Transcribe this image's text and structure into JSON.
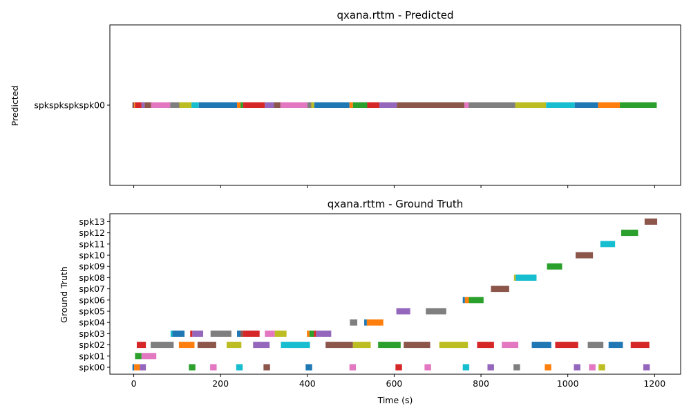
{
  "chart_data": [
    {
      "type": "timeline",
      "title": "qxana.rttm - Predicted",
      "ylabel": "Predicted",
      "xlabel": "",
      "xlim": [
        -55,
        1260
      ],
      "xticks": [
        0,
        200,
        400,
        600,
        800,
        1000,
        1200
      ],
      "xtick_labels": [
        "0",
        "200",
        "400",
        "600",
        "800",
        "1000",
        "1200"
      ],
      "tracks": [
        "spkspkspkspk00"
      ],
      "segments": [
        {
          "track": 0,
          "start": -3,
          "end": 1,
          "color": "#8c564b"
        },
        {
          "track": 0,
          "start": 1,
          "end": 3,
          "color": "#ff7f0e"
        },
        {
          "track": 0,
          "start": 3,
          "end": 18,
          "color": "#d62728"
        },
        {
          "track": 0,
          "start": 18,
          "end": 25,
          "color": "#9467bd"
        },
        {
          "track": 0,
          "start": 25,
          "end": 40,
          "color": "#8c564b"
        },
        {
          "track": 0,
          "start": 40,
          "end": 84,
          "color": "#e377c2"
        },
        {
          "track": 0,
          "start": 84,
          "end": 105,
          "color": "#7f7f7f"
        },
        {
          "track": 0,
          "start": 105,
          "end": 133,
          "color": "#bcbd22"
        },
        {
          "track": 0,
          "start": 133,
          "end": 150,
          "color": "#17becf"
        },
        {
          "track": 0,
          "start": 150,
          "end": 238,
          "color": "#1f77b4"
        },
        {
          "track": 0,
          "start": 238,
          "end": 246,
          "color": "#ff7f0e"
        },
        {
          "track": 0,
          "start": 246,
          "end": 252,
          "color": "#2ca02c"
        },
        {
          "track": 0,
          "start": 252,
          "end": 302,
          "color": "#d62728"
        },
        {
          "track": 0,
          "start": 302,
          "end": 323,
          "color": "#9467bd"
        },
        {
          "track": 0,
          "start": 323,
          "end": 338,
          "color": "#8c564b"
        },
        {
          "track": 0,
          "start": 338,
          "end": 400,
          "color": "#e377c2"
        },
        {
          "track": 0,
          "start": 400,
          "end": 409,
          "color": "#7f7f7f"
        },
        {
          "track": 0,
          "start": 409,
          "end": 416,
          "color": "#bcbd22"
        },
        {
          "track": 0,
          "start": 416,
          "end": 497,
          "color": "#1f77b4"
        },
        {
          "track": 0,
          "start": 497,
          "end": 505,
          "color": "#ff7f0e"
        },
        {
          "track": 0,
          "start": 505,
          "end": 538,
          "color": "#2ca02c"
        },
        {
          "track": 0,
          "start": 538,
          "end": 566,
          "color": "#d62728"
        },
        {
          "track": 0,
          "start": 566,
          "end": 606,
          "color": "#9467bd"
        },
        {
          "track": 0,
          "start": 606,
          "end": 762,
          "color": "#8c564b"
        },
        {
          "track": 0,
          "start": 762,
          "end": 772,
          "color": "#e377c2"
        },
        {
          "track": 0,
          "start": 772,
          "end": 879,
          "color": "#7f7f7f"
        },
        {
          "track": 0,
          "start": 879,
          "end": 950,
          "color": "#bcbd22"
        },
        {
          "track": 0,
          "start": 950,
          "end": 1016,
          "color": "#17becf"
        },
        {
          "track": 0,
          "start": 1016,
          "end": 1070,
          "color": "#1f77b4"
        },
        {
          "track": 0,
          "start": 1070,
          "end": 1120,
          "color": "#ff7f0e"
        },
        {
          "track": 0,
          "start": 1120,
          "end": 1205,
          "color": "#2ca02c"
        }
      ]
    },
    {
      "type": "timeline",
      "title": "qxana.rttm - Ground Truth",
      "ylabel": "Ground Truth",
      "xlabel": "Time (s)",
      "xlim": [
        -55,
        1260
      ],
      "xticks": [
        0,
        200,
        400,
        600,
        800,
        1000,
        1200
      ],
      "xtick_labels": [
        "0",
        "200",
        "400",
        "600",
        "800",
        "1000",
        "1200"
      ],
      "tracks": [
        "spk00",
        "spk01",
        "spk02",
        "spk03",
        "spk04",
        "spk05",
        "spk06",
        "spk07",
        "spk08",
        "spk09",
        "spk10",
        "spk11",
        "spk12",
        "spk13"
      ],
      "segments": [
        {
          "track": 0,
          "start": -3,
          "end": 1,
          "color": "#1f77b4"
        },
        {
          "track": 0,
          "start": 1,
          "end": 14,
          "color": "#ff7f0e"
        },
        {
          "track": 0,
          "start": 14,
          "end": 28,
          "color": "#9467bd"
        },
        {
          "track": 0,
          "start": 127,
          "end": 142,
          "color": "#2ca02c"
        },
        {
          "track": 0,
          "start": 176,
          "end": 191,
          "color": "#e377c2"
        },
        {
          "track": 0,
          "start": 236,
          "end": 251,
          "color": "#17becf"
        },
        {
          "track": 0,
          "start": 299,
          "end": 314,
          "color": "#8c564b"
        },
        {
          "track": 0,
          "start": 396,
          "end": 411,
          "color": "#1f77b4"
        },
        {
          "track": 0,
          "start": 497,
          "end": 512,
          "color": "#e377c2"
        },
        {
          "track": 0,
          "start": 603,
          "end": 618,
          "color": "#d62728"
        },
        {
          "track": 0,
          "start": 670,
          "end": 685,
          "color": "#e377c2"
        },
        {
          "track": 0,
          "start": 758,
          "end": 773,
          "color": "#17becf"
        },
        {
          "track": 0,
          "start": 815,
          "end": 830,
          "color": "#9467bd"
        },
        {
          "track": 0,
          "start": 875,
          "end": 890,
          "color": "#7f7f7f"
        },
        {
          "track": 0,
          "start": 947,
          "end": 962,
          "color": "#ff7f0e"
        },
        {
          "track": 0,
          "start": 1014,
          "end": 1029,
          "color": "#9467bd"
        },
        {
          "track": 0,
          "start": 1049,
          "end": 1064,
          "color": "#e377c2"
        },
        {
          "track": 0,
          "start": 1071,
          "end": 1086,
          "color": "#bcbd22"
        },
        {
          "track": 0,
          "start": 1174,
          "end": 1189,
          "color": "#9467bd"
        },
        {
          "track": 1,
          "start": 3,
          "end": 18,
          "color": "#2ca02c"
        },
        {
          "track": 1,
          "start": 18,
          "end": 52,
          "color": "#e377c2"
        },
        {
          "track": 2,
          "start": 7,
          "end": 28,
          "color": "#d62728"
        },
        {
          "track": 2,
          "start": 39,
          "end": 92,
          "color": "#7f7f7f"
        },
        {
          "track": 2,
          "start": 104,
          "end": 140,
          "color": "#ff7f0e"
        },
        {
          "track": 2,
          "start": 147,
          "end": 190,
          "color": "#8c564b"
        },
        {
          "track": 2,
          "start": 214,
          "end": 248,
          "color": "#bcbd22"
        },
        {
          "track": 2,
          "start": 275,
          "end": 313,
          "color": "#9467bd"
        },
        {
          "track": 2,
          "start": 339,
          "end": 406,
          "color": "#17becf"
        },
        {
          "track": 2,
          "start": 442,
          "end": 505,
          "color": "#8c564b"
        },
        {
          "track": 2,
          "start": 505,
          "end": 546,
          "color": "#bcbd22"
        },
        {
          "track": 2,
          "start": 563,
          "end": 615,
          "color": "#2ca02c"
        },
        {
          "track": 2,
          "start": 622,
          "end": 683,
          "color": "#8c564b"
        },
        {
          "track": 2,
          "start": 704,
          "end": 770,
          "color": "#bcbd22"
        },
        {
          "track": 2,
          "start": 791,
          "end": 830,
          "color": "#d62728"
        },
        {
          "track": 2,
          "start": 848,
          "end": 886,
          "color": "#e377c2"
        },
        {
          "track": 2,
          "start": 917,
          "end": 962,
          "color": "#1f77b4"
        },
        {
          "track": 2,
          "start": 971,
          "end": 1024,
          "color": "#d62728"
        },
        {
          "track": 2,
          "start": 1046,
          "end": 1082,
          "color": "#7f7f7f"
        },
        {
          "track": 2,
          "start": 1094,
          "end": 1127,
          "color": "#1f77b4"
        },
        {
          "track": 2,
          "start": 1145,
          "end": 1188,
          "color": "#d62728"
        },
        {
          "track": 3,
          "start": 85,
          "end": 89,
          "color": "#17becf"
        },
        {
          "track": 3,
          "start": 89,
          "end": 117,
          "color": "#1f77b4"
        },
        {
          "track": 3,
          "start": 130,
          "end": 135,
          "color": "#d62728"
        },
        {
          "track": 3,
          "start": 135,
          "end": 160,
          "color": "#9467bd"
        },
        {
          "track": 3,
          "start": 177,
          "end": 225,
          "color": "#7f7f7f"
        },
        {
          "track": 3,
          "start": 238,
          "end": 246,
          "color": "#1f77b4"
        },
        {
          "track": 3,
          "start": 246,
          "end": 252,
          "color": "#8c564b"
        },
        {
          "track": 3,
          "start": 252,
          "end": 290,
          "color": "#d62728"
        },
        {
          "track": 3,
          "start": 302,
          "end": 325,
          "color": "#e377c2"
        },
        {
          "track": 3,
          "start": 325,
          "end": 352,
          "color": "#bcbd22"
        },
        {
          "track": 3,
          "start": 399,
          "end": 405,
          "color": "#ff7f0e"
        },
        {
          "track": 3,
          "start": 405,
          "end": 415,
          "color": "#2ca02c"
        },
        {
          "track": 3,
          "start": 415,
          "end": 420,
          "color": "#d62728"
        },
        {
          "track": 3,
          "start": 420,
          "end": 455,
          "color": "#9467bd"
        },
        {
          "track": 4,
          "start": 498,
          "end": 515,
          "color": "#7f7f7f"
        },
        {
          "track": 4,
          "start": 531,
          "end": 537,
          "color": "#1f77b4"
        },
        {
          "track": 4,
          "start": 537,
          "end": 575,
          "color": "#ff7f0e"
        },
        {
          "track": 5,
          "start": 605,
          "end": 637,
          "color": "#9467bd"
        },
        {
          "track": 5,
          "start": 673,
          "end": 720,
          "color": "#7f7f7f"
        },
        {
          "track": 6,
          "start": 758,
          "end": 763,
          "color": "#1f77b4"
        },
        {
          "track": 6,
          "start": 763,
          "end": 772,
          "color": "#ff7f0e"
        },
        {
          "track": 6,
          "start": 772,
          "end": 806,
          "color": "#2ca02c"
        },
        {
          "track": 7,
          "start": 823,
          "end": 865,
          "color": "#8c564b"
        },
        {
          "track": 8,
          "start": 876,
          "end": 880,
          "color": "#bcbd22"
        },
        {
          "track": 8,
          "start": 880,
          "end": 928,
          "color": "#17becf"
        },
        {
          "track": 9,
          "start": 952,
          "end": 987,
          "color": "#2ca02c"
        },
        {
          "track": 10,
          "start": 1018,
          "end": 1058,
          "color": "#8c564b"
        },
        {
          "track": 11,
          "start": 1075,
          "end": 1109,
          "color": "#17becf"
        },
        {
          "track": 12,
          "start": 1123,
          "end": 1162,
          "color": "#2ca02c"
        },
        {
          "track": 13,
          "start": 1177,
          "end": 1206,
          "color": "#8c564b"
        }
      ]
    }
  ]
}
